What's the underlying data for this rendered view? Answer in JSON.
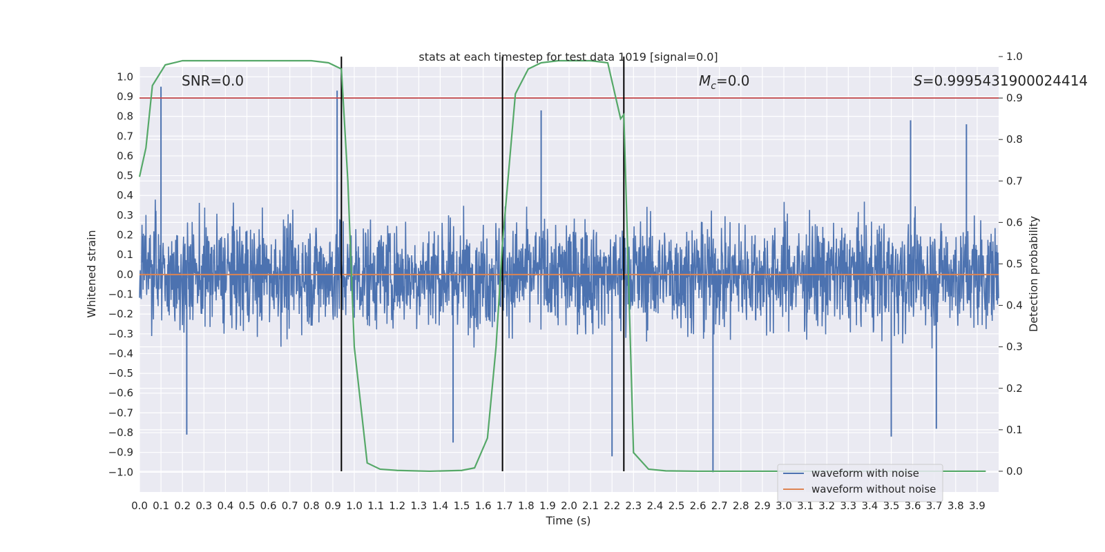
{
  "chart_data": {
    "type": "line",
    "title": "stats at each timestep for test data 1019 [signal=0.0]",
    "xlabel": "Time (s)",
    "ylabel": "Whitened strain",
    "y2label": "Detection probability",
    "xlim": [
      0.0,
      4.0
    ],
    "ylim": [
      -1.1,
      1.05
    ],
    "y2lim": [
      -0.05,
      0.975
    ],
    "xticks": [
      "0.0",
      "0.1",
      "0.2",
      "0.3",
      "0.4",
      "0.5",
      "0.6",
      "0.7",
      "0.8",
      "0.9",
      "1.0",
      "1.1",
      "1.2",
      "1.3",
      "1.4",
      "1.5",
      "1.6",
      "1.7",
      "1.8",
      "1.9",
      "2.0",
      "2.1",
      "2.2",
      "2.3",
      "2.4",
      "2.5",
      "2.6",
      "2.7",
      "2.8",
      "2.9",
      "3.0",
      "3.1",
      "3.2",
      "3.3",
      "3.4",
      "3.5",
      "3.6",
      "3.7",
      "3.8",
      "3.9"
    ],
    "yticks": [
      "1.0",
      "0.9",
      "0.8",
      "0.7",
      "0.6",
      "0.5",
      "0.4",
      "0.3",
      "0.2",
      "0.1",
      "0.0",
      "−0.1",
      "−0.2",
      "−0.3",
      "−0.4",
      "−0.5",
      "−0.6",
      "−0.7",
      "−0.8",
      "−0.9",
      "−1.0"
    ],
    "y2ticks": [
      "1.0",
      "0.9",
      "0.8",
      "0.7",
      "0.6",
      "0.5",
      "0.4",
      "0.3",
      "0.2",
      "0.1",
      "0.0"
    ],
    "annotations": {
      "snr": "SNR=0.0",
      "mc_symbol": "M",
      "mc_sub": "c",
      "mc_value": "=0.0",
      "s_symbol": "S",
      "s_value": "=0.9995431900024414"
    },
    "legend": {
      "position": "lower right",
      "entries": [
        "waveform with noise",
        "waveform without noise"
      ]
    },
    "threshold_line": {
      "value": 0.9,
      "axis": "right",
      "color": "#c44e52"
    },
    "vertical_lines": [
      0.94,
      1.69,
      2.255
    ],
    "series": [
      {
        "name": "waveform with noise",
        "color": "#4c72b0",
        "kind": "noise",
        "envelope": 0.5,
        "extremes": [
          {
            "x": 0.1,
            "y": 0.95
          },
          {
            "x": 0.22,
            "y": -0.81
          },
          {
            "x": 0.92,
            "y": 0.93
          },
          {
            "x": 1.46,
            "y": -0.85
          },
          {
            "x": 2.2,
            "y": -0.92
          },
          {
            "x": 2.67,
            "y": -1.0
          },
          {
            "x": 3.59,
            "y": 0.78
          },
          {
            "x": 3.5,
            "y": -0.82
          },
          {
            "x": 3.71,
            "y": -0.78
          },
          {
            "x": 3.85,
            "y": 0.76
          },
          {
            "x": 1.87,
            "y": 0.83
          }
        ]
      },
      {
        "name": "waveform without noise",
        "color": "#dd8452",
        "kind": "constant",
        "y": 0.0
      },
      {
        "name": "detection probability",
        "color": "#55a868",
        "axis": "right",
        "x": [
          0.0,
          0.03,
          0.06,
          0.12,
          0.2,
          0.3,
          0.5,
          0.7,
          0.8,
          0.88,
          0.94,
          0.97,
          1.0,
          1.06,
          1.12,
          1.2,
          1.35,
          1.5,
          1.56,
          1.62,
          1.66,
          1.69,
          1.75,
          1.81,
          1.87,
          1.95,
          2.1,
          2.18,
          2.24,
          2.255,
          2.3,
          2.37,
          2.45,
          2.6,
          2.8,
          3.2,
          3.6,
          3.94
        ],
        "y": [
          0.71,
          0.78,
          0.93,
          0.98,
          0.99,
          0.99,
          0.99,
          0.99,
          0.99,
          0.985,
          0.97,
          0.7,
          0.3,
          0.02,
          0.005,
          0.002,
          0.0,
          0.002,
          0.008,
          0.08,
          0.3,
          0.55,
          0.91,
          0.97,
          0.985,
          0.99,
          0.99,
          0.985,
          0.85,
          0.86,
          0.045,
          0.005,
          0.001,
          0.0,
          0.0,
          0.0,
          0.0,
          0.0
        ]
      }
    ]
  }
}
